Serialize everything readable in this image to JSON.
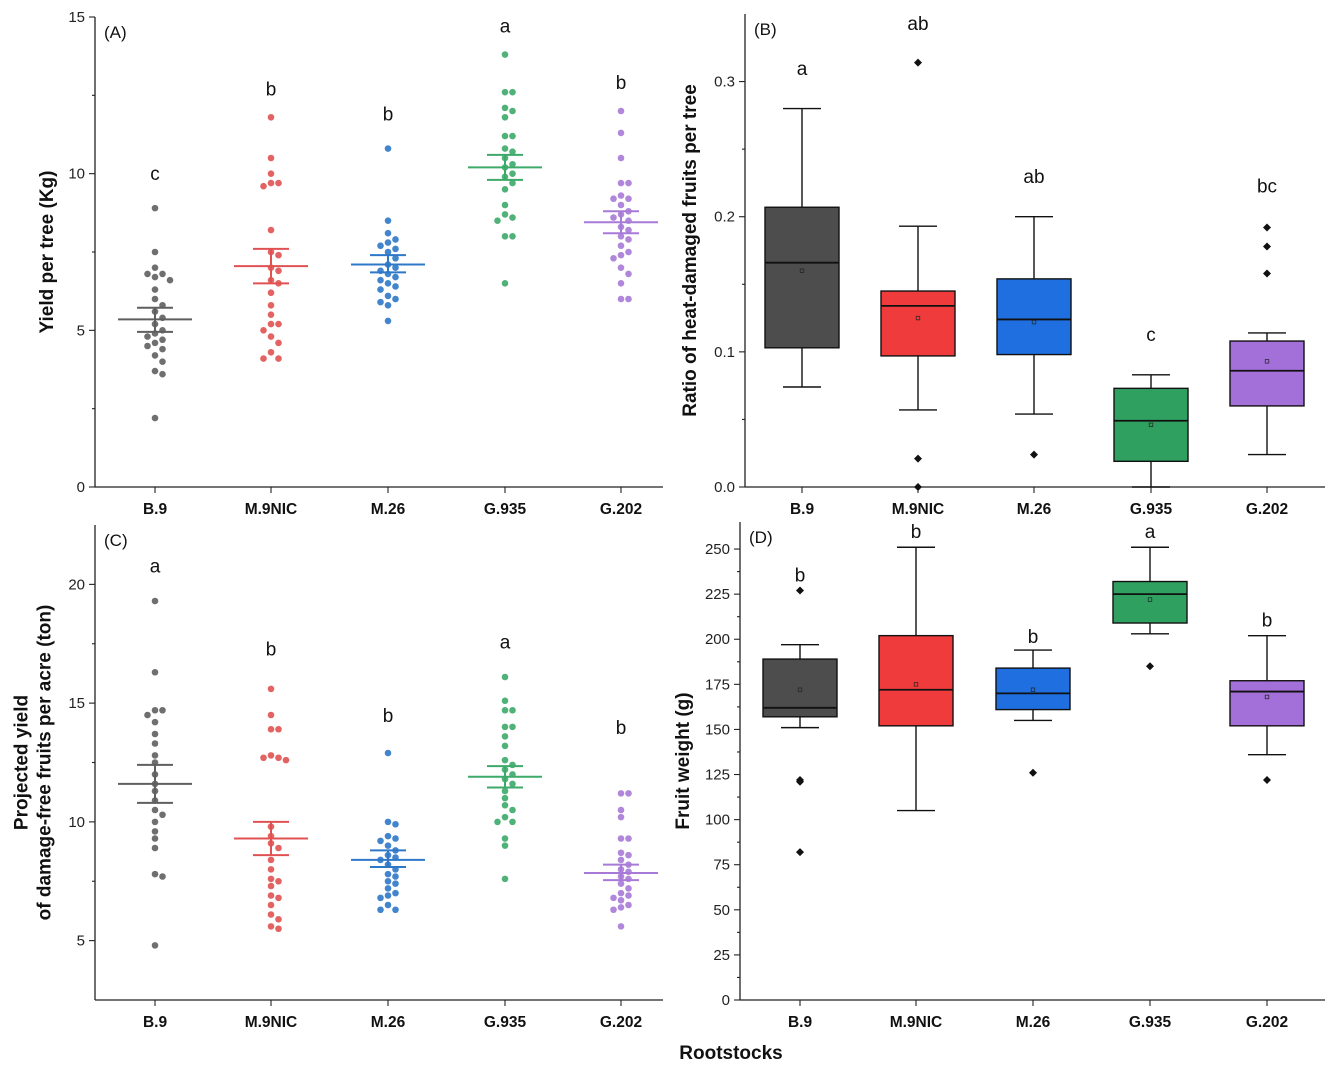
{
  "x_axis_title": "Rootstocks",
  "chart_data": [
    {
      "id": "A",
      "type": "scatter",
      "panel_label": "(A)",
      "ylabel": "Yield per tree (Kg)",
      "ylim": [
        0,
        15
      ],
      "yticks": [
        0,
        5,
        10,
        15
      ],
      "categories": [
        "B.9",
        "M.9NIC",
        "M.26",
        "G.935",
        "G.202"
      ],
      "colors": [
        "#5f5f5f",
        "#e05252",
        "#2f78c8",
        "#3daa6a",
        "#a87ad8"
      ],
      "letters": [
        "c",
        "b",
        "b",
        "a",
        "b"
      ],
      "letter_y": [
        9.8,
        12.5,
        11.7,
        14.5,
        12.7
      ],
      "series": [
        {
          "mean": 5.35,
          "sem_low": 4.95,
          "sem_high": 5.72,
          "points": [
            8.9,
            7.5,
            7.0,
            6.8,
            6.8,
            6.7,
            6.6,
            6.3,
            6.0,
            5.8,
            5.6,
            5.4,
            5.2,
            5.0,
            4.9,
            4.8,
            4.7,
            4.6,
            4.5,
            4.4,
            4.2,
            4.0,
            3.7,
            3.6,
            2.2
          ]
        },
        {
          "mean": 7.05,
          "sem_low": 6.5,
          "sem_high": 7.6,
          "points": [
            11.8,
            10.5,
            10.0,
            9.7,
            9.7,
            9.6,
            8.2,
            7.5,
            7.4,
            7.0,
            6.9,
            6.6,
            6.5,
            6.2,
            5.8,
            5.5,
            5.2,
            5.2,
            5.0,
            4.8,
            4.6,
            4.3,
            4.1,
            4.1
          ]
        },
        {
          "mean": 7.1,
          "sem_low": 6.85,
          "sem_high": 7.4,
          "points": [
            10.8,
            8.5,
            8.1,
            7.9,
            7.8,
            7.7,
            7.6,
            7.5,
            7.3,
            7.1,
            7.0,
            6.9,
            6.8,
            6.7,
            6.6,
            6.5,
            6.4,
            6.3,
            6.1,
            6.0,
            5.9,
            5.8,
            5.3
          ]
        },
        {
          "mean": 10.2,
          "sem_low": 9.8,
          "sem_high": 10.6,
          "points": [
            13.8,
            12.6,
            12.6,
            12.1,
            12.0,
            11.8,
            11.2,
            11.2,
            10.8,
            10.7,
            10.5,
            10.3,
            10.2,
            10.0,
            9.9,
            9.7,
            9.5,
            9.0,
            8.7,
            8.6,
            8.5,
            8.0,
            8.0,
            6.5
          ]
        },
        {
          "mean": 8.45,
          "sem_low": 8.1,
          "sem_high": 8.8,
          "points": [
            12.0,
            11.3,
            10.5,
            9.7,
            9.7,
            9.3,
            9.2,
            9.2,
            9.0,
            8.8,
            8.7,
            8.6,
            8.5,
            8.3,
            8.2,
            8.0,
            7.9,
            7.7,
            7.5,
            7.4,
            7.3,
            7.0,
            6.8,
            6.5,
            6.0,
            6.0
          ]
        }
      ]
    },
    {
      "id": "B",
      "type": "box",
      "panel_label": "(B)",
      "ylabel": "Ratio of heat-damaged fruits per tree",
      "ylim": [
        0,
        0.35
      ],
      "yticks": [
        0.0,
        0.1,
        0.2,
        0.3
      ],
      "ytick_labels": [
        "0.0",
        "0.1",
        "0.2",
        "0.3"
      ],
      "categories": [
        "B.9",
        "M.9NIC",
        "M.26",
        "G.935",
        "G.202"
      ],
      "colors": [
        "#4d4d4d",
        "#ef3b3b",
        "#1f6fe0",
        "#2fa060",
        "#a36fd9"
      ],
      "letters": [
        "a",
        "ab",
        "ab",
        "c",
        "bc"
      ],
      "letter_y": [
        0.305,
        0.338,
        0.225,
        0.108,
        0.218
      ],
      "series": [
        {
          "whisker_low": 0.074,
          "q1": 0.103,
          "median": 0.166,
          "q3": 0.207,
          "whisker_high": 0.28,
          "mean": 0.16,
          "outliers": []
        },
        {
          "whisker_low": 0.057,
          "q1": 0.097,
          "median": 0.134,
          "q3": 0.145,
          "whisker_high": 0.193,
          "mean": 0.125,
          "outliers": [
            0.314,
            0.021,
            0.0
          ]
        },
        {
          "whisker_low": 0.054,
          "q1": 0.098,
          "median": 0.124,
          "q3": 0.154,
          "whisker_high": 0.2,
          "mean": 0.122,
          "outliers": [
            0.024
          ]
        },
        {
          "whisker_low": 0.0,
          "q1": 0.019,
          "median": 0.049,
          "q3": 0.073,
          "whisker_high": 0.083,
          "mean": 0.046,
          "outliers": []
        },
        {
          "whisker_low": 0.024,
          "q1": 0.06,
          "median": 0.086,
          "q3": 0.108,
          "whisker_high": 0.114,
          "mean": 0.093,
          "outliers": [
            0.192,
            0.178,
            0.158
          ]
        }
      ]
    },
    {
      "id": "C",
      "type": "scatter",
      "panel_label": "(C)",
      "ylabel": "Projected yield\nof damage-free fruits per acre (ton)",
      "ylim": [
        2.5,
        22.5
      ],
      "yticks": [
        5,
        10,
        15,
        20
      ],
      "categories": [
        "B.9",
        "M.9NIC",
        "M.26",
        "G.935",
        "G.202"
      ],
      "colors": [
        "#5f5f5f",
        "#e05252",
        "#2f78c8",
        "#3daa6a",
        "#a87ad8"
      ],
      "letters": [
        "a",
        "b",
        "b",
        "a",
        "b"
      ],
      "letter_y": [
        20.5,
        17.0,
        14.2,
        17.3,
        13.7
      ],
      "series": [
        {
          "mean": 11.6,
          "sem_low": 10.8,
          "sem_high": 12.4,
          "points": [
            19.3,
            16.3,
            14.7,
            14.7,
            14.5,
            14.2,
            13.7,
            13.3,
            12.8,
            12.5,
            12.0,
            11.6,
            11.3,
            10.9,
            10.5,
            10.3,
            10.0,
            9.6,
            9.3,
            8.9,
            7.8,
            7.7,
            4.8
          ]
        },
        {
          "mean": 9.3,
          "sem_low": 8.6,
          "sem_high": 10.0,
          "points": [
            15.6,
            14.5,
            13.9,
            13.9,
            12.8,
            12.7,
            12.7,
            12.6,
            9.8,
            9.4,
            9.1,
            8.9,
            8.4,
            8.0,
            7.6,
            7.5,
            7.3,
            6.9,
            6.8,
            6.5,
            6.1,
            5.9,
            5.6,
            5.5
          ]
        },
        {
          "mean": 8.4,
          "sem_low": 8.1,
          "sem_high": 8.8,
          "points": [
            12.9,
            10.0,
            9.9,
            9.4,
            9.3,
            9.2,
            9.0,
            8.8,
            8.6,
            8.5,
            8.4,
            8.2,
            8.0,
            7.8,
            7.7,
            7.5,
            7.4,
            7.2,
            7.0,
            6.9,
            6.8,
            6.5,
            6.3,
            6.3
          ]
        },
        {
          "mean": 11.9,
          "sem_low": 11.45,
          "sem_high": 12.35,
          "points": [
            16.1,
            15.1,
            14.7,
            14.7,
            14.0,
            14.0,
            13.6,
            13.2,
            12.6,
            12.4,
            12.2,
            12.0,
            11.8,
            11.6,
            11.3,
            11.0,
            10.7,
            10.5,
            10.2,
            10.0,
            10.0,
            9.3,
            9.0,
            7.6
          ]
        },
        {
          "mean": 7.85,
          "sem_low": 7.55,
          "sem_high": 8.2,
          "points": [
            11.2,
            11.2,
            10.5,
            10.2,
            9.3,
            9.3,
            8.7,
            8.6,
            8.4,
            8.2,
            8.0,
            7.9,
            7.7,
            7.6,
            7.4,
            7.2,
            7.0,
            6.9,
            6.8,
            6.7,
            6.5,
            6.4,
            6.3,
            5.6
          ]
        }
      ]
    },
    {
      "id": "D",
      "type": "box",
      "panel_label": "(D)",
      "ylabel": "Fruit weight (g)",
      "ylim": [
        0,
        265
      ],
      "yticks": [
        0,
        25,
        50,
        75,
        100,
        125,
        150,
        175,
        200,
        225,
        250
      ],
      "categories": [
        "B.9",
        "M.9NIC",
        "M.26",
        "G.935",
        "G.202"
      ],
      "colors": [
        "#4d4d4d",
        "#ef3b3b",
        "#1f6fe0",
        "#2fa060",
        "#a36fd9"
      ],
      "letters": [
        "b",
        "b",
        "b",
        "a",
        "b"
      ],
      "letter_y": [
        232,
        256,
        198,
        256,
        207
      ],
      "series": [
        {
          "whisker_low": 151,
          "q1": 157,
          "median": 162,
          "q3": 189,
          "whisker_high": 197,
          "mean": 172,
          "outliers": [
            227,
            122,
            121,
            82
          ]
        },
        {
          "whisker_low": 105,
          "q1": 152,
          "median": 172,
          "q3": 202,
          "whisker_high": 251,
          "mean": 175,
          "outliers": []
        },
        {
          "whisker_low": 155,
          "q1": 161,
          "median": 170,
          "q3": 184,
          "whisker_high": 194,
          "mean": 172,
          "outliers": [
            126
          ]
        },
        {
          "whisker_low": 203,
          "q1": 209,
          "median": 225,
          "q3": 232,
          "whisker_high": 251,
          "mean": 222,
          "outliers": [
            185
          ]
        },
        {
          "whisker_low": 136,
          "q1": 152,
          "median": 171,
          "q3": 177,
          "whisker_high": 202,
          "mean": 168,
          "outliers": [
            122
          ]
        }
      ]
    }
  ]
}
